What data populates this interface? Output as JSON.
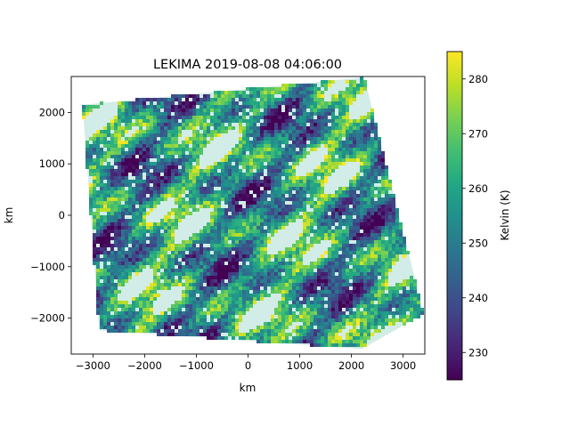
{
  "chart_data": {
    "type": "heatmap",
    "title": "LEKIMA 2019-08-08 04:06:00",
    "xlabel": "km",
    "ylabel": "km",
    "xlim": [
      -3420,
      3420
    ],
    "ylim": [
      -2700,
      2700
    ],
    "x_ticks": [
      -3000,
      -2000,
      -1000,
      0,
      1000,
      2000,
      3000
    ],
    "x_tick_labels": [
      "−3000",
      "−2000",
      "−1000",
      "0",
      "1000",
      "2000",
      "3000"
    ],
    "y_ticks": [
      -2000,
      -1000,
      0,
      1000,
      2000
    ],
    "y_tick_labels": [
      "−2000",
      "−1000",
      "0",
      "1000",
      "2000"
    ],
    "swath_corners_km": [
      [
        -3200,
        2150
      ],
      [
        -2880,
        -2240
      ],
      [
        2200,
        -2600
      ],
      [
        3400,
        -1920
      ],
      [
        2250,
        2680
      ]
    ],
    "colorbar": {
      "label": "Kelvin (K)",
      "colormap": "viridis",
      "vmin": 225,
      "vmax": 285,
      "ticks": [
        230,
        240,
        250,
        260,
        270,
        280
      ],
      "tick_labels": [
        "230",
        "240",
        "250",
        "260",
        "270",
        "280"
      ]
    },
    "grid": false,
    "notes_visible": [
      "no-data (white) regions present in the swath"
    ]
  }
}
